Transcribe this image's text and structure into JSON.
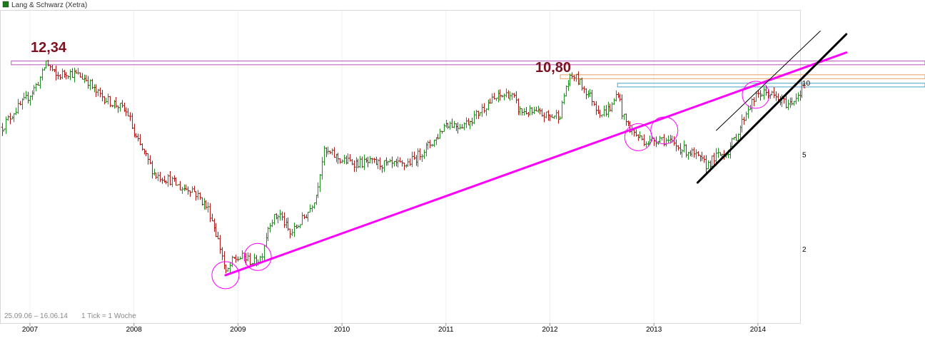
{
  "legend": {
    "label": "Lang & Schwarz (Xetra)",
    "swatch_color": "#1a7a1a"
  },
  "footer": {
    "range": "25.09.06 – 16.06.14",
    "tick_info": "1 Tick = 1 Woche"
  },
  "annotations": {
    "high_label": "12,34",
    "high2_label": "10,80"
  },
  "colors": {
    "up": "#1f8f1f",
    "down": "#b01818",
    "trend": "#ff00ff",
    "channel": "#000000",
    "resistance_high": "#bb55bb",
    "resistance_orange": "#e8a060",
    "support_blue": "#4aa3c8",
    "annotation_text": "#7a1020",
    "grid": "#f0f0f0",
    "frame": "#d8d8d8"
  },
  "chart_data": {
    "type": "candlestick",
    "title": "Lang & Schwarz (Xetra)",
    "interval": "1 Tick = 1 Woche",
    "date_range": [
      "25.09.06",
      "16.06.14"
    ],
    "y_scale": "log",
    "y_ticks": [
      {
        "value": 2,
        "label": "2"
      },
      {
        "value": 5,
        "label": "5"
      },
      {
        "value": 10,
        "label": "10"
      }
    ],
    "x_ticks": [
      {
        "year": 2007,
        "label": "2007"
      },
      {
        "year": 2008,
        "label": "2008"
      },
      {
        "year": 2009,
        "label": "2009"
      },
      {
        "year": 2010,
        "label": "2010"
      },
      {
        "year": 2011,
        "label": "2011"
      },
      {
        "year": 2012,
        "label": "2012"
      },
      {
        "year": 2013,
        "label": "2013"
      },
      {
        "year": 2014,
        "label": "2014"
      }
    ],
    "price_path": [
      [
        2006.73,
        6.5
      ],
      [
        2006.85,
        7.6
      ],
      [
        2006.95,
        8.4
      ],
      [
        2007.05,
        9.6
      ],
      [
        2007.12,
        11.0
      ],
      [
        2007.15,
        12.34
      ],
      [
        2007.25,
        10.6
      ],
      [
        2007.35,
        11.1
      ],
      [
        2007.45,
        10.8
      ],
      [
        2007.55,
        10.3
      ],
      [
        2007.62,
        9.2
      ],
      [
        2007.75,
        8.4
      ],
      [
        2007.85,
        8.0
      ],
      [
        2007.95,
        7.3
      ],
      [
        2008.0,
        6.0
      ],
      [
        2008.1,
        5.0
      ],
      [
        2008.2,
        4.1
      ],
      [
        2008.35,
        3.9
      ],
      [
        2008.45,
        3.6
      ],
      [
        2008.55,
        3.6
      ],
      [
        2008.65,
        3.2
      ],
      [
        2008.72,
        2.9
      ],
      [
        2008.78,
        2.4
      ],
      [
        2008.85,
        1.85
      ],
      [
        2008.88,
        1.55
      ],
      [
        2008.95,
        1.8
      ],
      [
        2009.05,
        1.85
      ],
      [
        2009.15,
        1.75
      ],
      [
        2009.22,
        1.85
      ],
      [
        2009.3,
        2.6
      ],
      [
        2009.4,
        2.8
      ],
      [
        2009.5,
        2.3
      ],
      [
        2009.6,
        2.6
      ],
      [
        2009.68,
        2.9
      ],
      [
        2009.75,
        3.4
      ],
      [
        2009.82,
        5.1
      ],
      [
        2009.9,
        5.0
      ],
      [
        2010.0,
        4.7
      ],
      [
        2010.15,
        4.6
      ],
      [
        2010.3,
        4.6
      ],
      [
        2010.45,
        4.5
      ],
      [
        2010.6,
        4.5
      ],
      [
        2010.7,
        4.8
      ],
      [
        2010.8,
        5.3
      ],
      [
        2010.9,
        5.8
      ],
      [
        2011.0,
        6.8
      ],
      [
        2011.12,
        6.6
      ],
      [
        2011.2,
        6.8
      ],
      [
        2011.3,
        7.4
      ],
      [
        2011.4,
        8.2
      ],
      [
        2011.5,
        8.7
      ],
      [
        2011.6,
        9.0
      ],
      [
        2011.65,
        8.6
      ],
      [
        2011.7,
        7.6
      ],
      [
        2011.8,
        7.5
      ],
      [
        2011.9,
        7.4
      ],
      [
        2012.0,
        7.2
      ],
      [
        2012.1,
        7.4
      ],
      [
        2012.15,
        9.6
      ],
      [
        2012.22,
        10.8
      ],
      [
        2012.3,
        9.8
      ],
      [
        2012.4,
        8.6
      ],
      [
        2012.45,
        7.8
      ],
      [
        2012.5,
        7.4
      ],
      [
        2012.6,
        8.0
      ],
      [
        2012.65,
        9.3
      ],
      [
        2012.7,
        7.2
      ],
      [
        2012.78,
        6.3
      ],
      [
        2012.85,
        5.9
      ],
      [
        2012.95,
        5.6
      ],
      [
        2013.05,
        5.9
      ],
      [
        2013.15,
        5.6
      ],
      [
        2013.25,
        5.3
      ],
      [
        2013.35,
        5.1
      ],
      [
        2013.45,
        4.7
      ],
      [
        2013.5,
        4.5
      ],
      [
        2013.6,
        4.9
      ],
      [
        2013.7,
        5.1
      ],
      [
        2013.8,
        6.1
      ],
      [
        2013.9,
        7.8
      ],
      [
        2014.0,
        8.9
      ],
      [
        2014.1,
        9.1
      ],
      [
        2014.2,
        8.4
      ],
      [
        2014.3,
        8.1
      ],
      [
        2014.38,
        8.9
      ],
      [
        2014.46,
        9.9
      ]
    ],
    "horizontal_levels": [
      {
        "value": 12.34,
        "label": "12,34",
        "color": "#bb55bb",
        "from": 2006.82,
        "to": 2015.0
      },
      {
        "value": 11.9,
        "color": "#bb55bb",
        "from": 2006.82,
        "to": 2015.0
      },
      {
        "value": 10.8,
        "label": "10,80",
        "color": "#e8a060",
        "from": 2012.1,
        "to": 2015.0
      },
      {
        "value": 10.4,
        "color": "#e8a060",
        "from": 2012.1,
        "to": 2015.0
      },
      {
        "value": 9.95,
        "color": "#4aa3c8",
        "from": 2012.65,
        "to": 2015.0
      },
      {
        "value": 9.6,
        "color": "#4aa3c8",
        "from": 2012.65,
        "to": 2015.0
      }
    ],
    "trend_lines": [
      {
        "from": [
          2008.88,
          1.55
        ],
        "to": [
          2014.85,
          13.4
        ],
        "color": "#ff00ff",
        "width": 3
      },
      {
        "from": [
          2013.42,
          3.8
        ],
        "to": [
          2014.85,
          16.0
        ],
        "color": "#000000",
        "width": 3
      },
      {
        "from": [
          2013.6,
          6.3
        ],
        "to": [
          2014.6,
          16.5
        ],
        "color": "#000000",
        "width": 1
      }
    ],
    "circle_markers": [
      {
        "x": 2008.88,
        "y": 1.55
      },
      {
        "x": 2009.19,
        "y": 1.85
      },
      {
        "x": 2012.85,
        "y": 5.9
      },
      {
        "x": 2013.1,
        "y": 6.3
      },
      {
        "x": 2013.98,
        "y": 8.9
      }
    ]
  }
}
